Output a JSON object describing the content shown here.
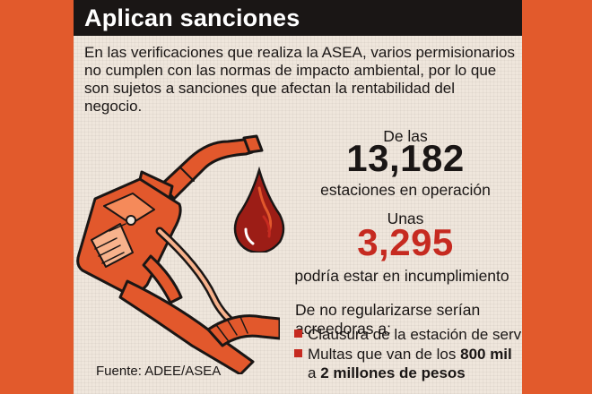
{
  "title": "Aplican sanciones",
  "intro": "En las verificaciones que realiza la ASEA, varios permisionarios no cumplen con las normas de impacto ambiental, por lo que son sujetos a sanciones que afectan la rentabilidad del negocio.",
  "stat_total": {
    "prefix": "De las",
    "value": "13,182",
    "suffix": "estaciones en operación"
  },
  "stat_noncompliant": {
    "prefix": "Unas",
    "value": "3,295",
    "suffix": "podría estar en incumplimiento"
  },
  "consequences": {
    "heading": "De no regularizarse serían acreedoras a:",
    "item1": "Clausura de la estación de servicio",
    "item2_start": "Multas que van de los ",
    "item2_bold1": "800 mil",
    "item2_line2_start": "a ",
    "item2_bold2": "2 millones de pesos"
  },
  "source": "Fuente: ADEE/ASEA",
  "colors": {
    "background_orange": "#e25a2c",
    "card": "#efe6dc",
    "title_bar": "#1a1615",
    "accent_red": "#c62a20",
    "pump_orange": "#e2582c"
  },
  "icons": [
    "fuel-nozzle-illustration",
    "fuel-drop-icon",
    "red-square-bullet-icon"
  ]
}
